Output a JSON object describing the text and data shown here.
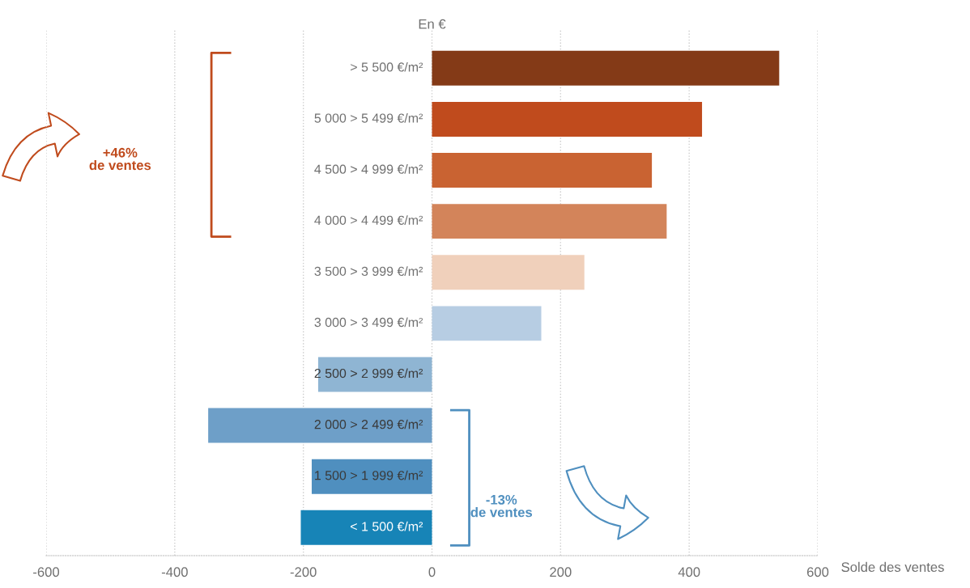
{
  "chart_data": {
    "type": "bar",
    "orientation": "horizontal",
    "ylabel": "En €",
    "xlabel": "Solde des ventes",
    "categories": [
      "> 5 500 €/m²",
      "5 000 > 5 499 €/m²",
      "4 500 > 4 999 €/m²",
      "4 000 > 4 499 €/m²",
      "3 500 > 3 999 €/m²",
      "3 000 > 3 499 €/m²",
      "2 500 > 2 999 €/m²",
      "2 000 > 2 499 €/m²",
      "1 500 > 1 999 €/m²",
      "< 1 500 €/m²"
    ],
    "values": [
      540,
      420,
      342,
      365,
      237,
      170,
      -177,
      -348,
      -187,
      -204
    ],
    "colors": [
      "#843a17",
      "#c04b1d",
      "#c96332",
      "#d3845a",
      "#f0d0bb",
      "#b7cde3",
      "#8fb5d3",
      "#6e9fc8",
      "#4f8fbf",
      "#1784b7"
    ],
    "xlim": [
      -600,
      600
    ],
    "xticks": [
      -600,
      -400,
      -200,
      0,
      200,
      400,
      600
    ],
    "grid": "x",
    "annotations": [
      "+46%\nde ventes",
      "-13%\nde ventes"
    ]
  }
}
